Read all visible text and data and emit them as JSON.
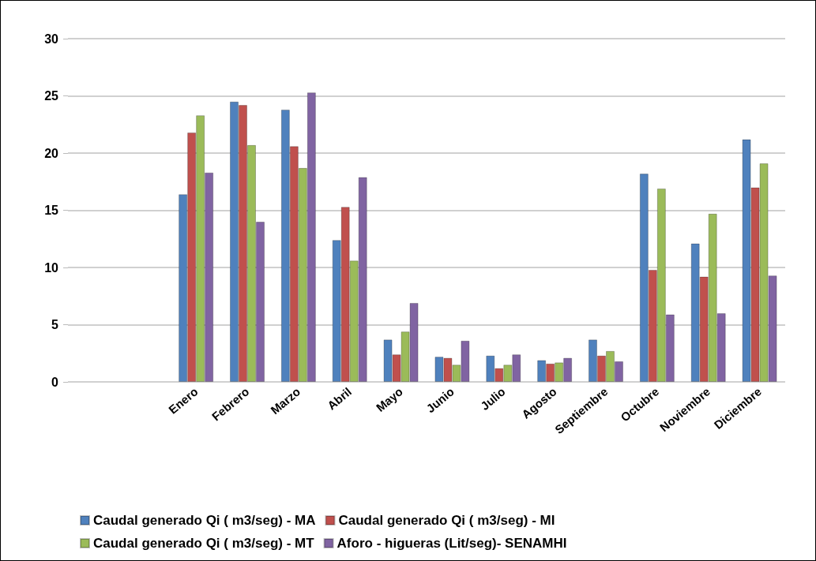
{
  "chart_data": {
    "type": "bar",
    "categories": [
      null,
      null,
      "Enero",
      "Febrero",
      "Marzo",
      "Abril",
      "Mayo",
      "Junio",
      "Julio",
      "Agosto",
      "Septiembre",
      "Octubre",
      "Noviembre",
      "Diciembre"
    ],
    "series": [
      {
        "name": "Caudal generado Qi ( m3/seg) - MA",
        "color": "#4f81bd",
        "values": [
          null,
          null,
          16.4,
          24.5,
          23.8,
          12.4,
          3.7,
          2.2,
          2.3,
          1.9,
          3.7,
          18.2,
          12.1,
          21.2
        ]
      },
      {
        "name": "Caudal generado Qi ( m3/seg) - MI",
        "color": "#c0504d",
        "values": [
          null,
          null,
          21.8,
          24.2,
          20.6,
          15.3,
          2.4,
          2.1,
          1.2,
          1.6,
          2.3,
          9.8,
          9.2,
          17.0
        ]
      },
      {
        "name": "Caudal generado Qi ( m3/seg) - MT",
        "color": "#9bbb59",
        "values": [
          null,
          null,
          23.3,
          20.7,
          18.7,
          10.6,
          4.4,
          1.5,
          1.5,
          1.7,
          2.7,
          16.9,
          14.7,
          19.1
        ]
      },
      {
        "name": "Aforo - higueras (Lit/seg)- SENAMHI",
        "color": "#8064a2",
        "values": [
          null,
          null,
          18.3,
          14.0,
          25.3,
          17.9,
          6.9,
          3.6,
          2.4,
          2.1,
          1.8,
          5.9,
          6.0,
          9.3
        ]
      }
    ],
    "ylim": [
      0,
      30
    ],
    "yticks": [
      0,
      5,
      10,
      15,
      20,
      25,
      30
    ],
    "grid": "y",
    "legend": "bottom"
  }
}
